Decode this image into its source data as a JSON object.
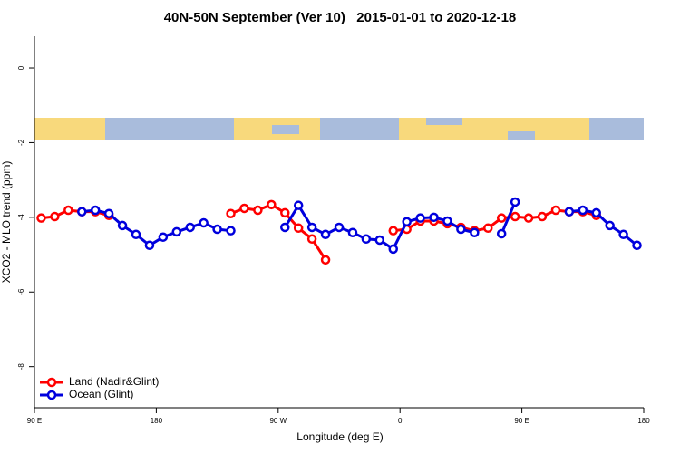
{
  "chart_data": {
    "type": "line",
    "title": "40N-50N September (Ver 10)   2015-01-01 to 2020-12-18",
    "x_label": "Longitude (deg E)",
    "y_label": "XCO2 - MLO trend (ppm)",
    "x": [
      95,
      105,
      115,
      125,
      135,
      145,
      155,
      165,
      175,
      185,
      195,
      205,
      215,
      225,
      235,
      245,
      255,
      265,
      275,
      285,
      295,
      305,
      315,
      325,
      335,
      345,
      355,
      365,
      375,
      385,
      395,
      405,
      415,
      425,
      435,
      445,
      455,
      465,
      475,
      485,
      495,
      505,
      515,
      525,
      535
    ],
    "series": [
      {
        "name": "Land (Nadir&Glint)",
        "color": "#ff0000",
        "values": [
          -4.02,
          -3.98,
          -3.81,
          -3.85,
          -3.85,
          -3.95,
          null,
          null,
          null,
          null,
          null,
          null,
          null,
          null,
          -3.9,
          -3.76,
          -3.81,
          -3.66,
          -3.88,
          -4.29,
          -4.58,
          -5.14,
          null,
          null,
          null,
          null,
          -4.36,
          -4.32,
          -4.1,
          -4.1,
          -4.17,
          -4.27,
          -4.36,
          -4.29,
          -4.02,
          -3.98,
          -4.02,
          -3.98,
          -3.81,
          -3.85,
          -3.85,
          -3.95,
          null,
          null,
          null
        ]
      },
      {
        "name": "Ocean (Glint)",
        "color": "#0000dd",
        "values": [
          null,
          null,
          null,
          -3.85,
          -3.81,
          -3.9,
          -4.22,
          -4.46,
          -4.75,
          -4.53,
          -4.39,
          -4.27,
          -4.15,
          -4.32,
          -4.36,
          null,
          null,
          null,
          -4.27,
          -3.68,
          -4.27,
          -4.46,
          -4.27,
          -4.41,
          -4.58,
          -4.61,
          -4.85,
          -4.12,
          -4.02,
          -4.0,
          -4.1,
          -4.32,
          -4.41,
          null,
          -4.44,
          -3.59,
          null,
          null,
          null,
          -3.85,
          -3.81,
          -3.88,
          -4.22,
          -4.46,
          -4.75
        ]
      }
    ],
    "xlim": [
      90,
      540
    ],
    "xticks": [
      {
        "value": 90,
        "label": "90 E"
      },
      180,
      {
        "value": 270,
        "label": "90 W"
      },
      {
        "value": 360,
        "label": "0"
      },
      {
        "value": 450,
        "label": "90 E"
      },
      {
        "value": 540,
        "label": "180"
      }
    ],
    "ylim": [
      -9.1,
      0.85
    ],
    "yticks": [
      0,
      -2,
      -4,
      -6,
      -8
    ],
    "legend": "lower left"
  }
}
